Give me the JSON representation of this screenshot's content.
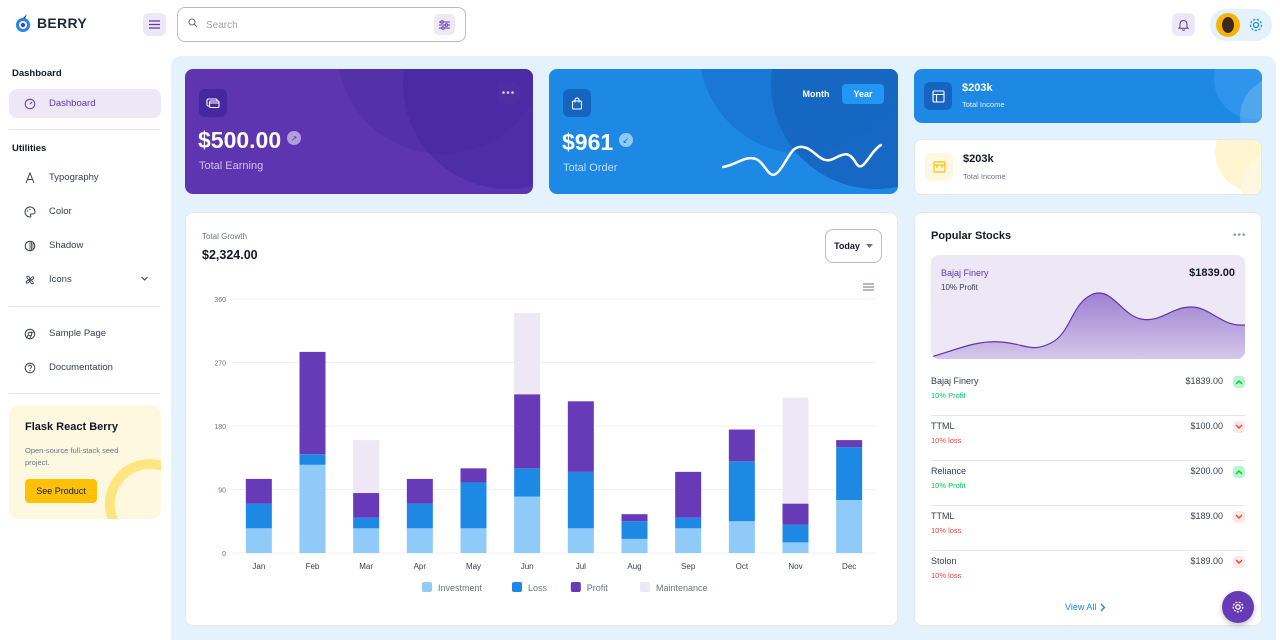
{
  "header": {
    "logo_text": "BERRY",
    "search_placeholder": "Search"
  },
  "sidebar": {
    "sections": [
      {
        "caption": "Dashboard"
      },
      {
        "caption": "Utilities"
      }
    ],
    "items": [
      {
        "label": "Dashboard",
        "icon": "dashboard-icon",
        "active": true
      },
      {
        "label": "Typography",
        "icon": "typography-icon"
      },
      {
        "label": "Color",
        "icon": "palette-icon"
      },
      {
        "label": "Shadow",
        "icon": "shadow-icon"
      },
      {
        "label": "Icons",
        "icon": "windmill-icon"
      },
      {
        "label": "Sample Page",
        "icon": "brand-chrome-icon"
      },
      {
        "label": "Documentation",
        "icon": "help-icon"
      }
    ],
    "promo": {
      "title": "Flask React Berry",
      "description": "Open-source full-stack seed project.",
      "button": "See Product"
    }
  },
  "cards": {
    "earning": {
      "value": "$500.00",
      "label": "Total Earning"
    },
    "order": {
      "value": "$961",
      "label": "Total Order",
      "toggle_month": "Month",
      "toggle_year": "Year",
      "selected": "Year"
    },
    "income_dark": {
      "value": "$203k",
      "label": "Total Income"
    },
    "income_light": {
      "value": "$203k",
      "label": "Total Income"
    }
  },
  "growth": {
    "label": "Total Growth",
    "value": "$2,324.00",
    "period": "Today"
  },
  "chart_data": {
    "type": "bar",
    "stacked": true,
    "categories": [
      "Jan",
      "Feb",
      "Mar",
      "Apr",
      "May",
      "Jun",
      "Jul",
      "Aug",
      "Sep",
      "Oct",
      "Nov",
      "Dec"
    ],
    "series": [
      {
        "name": "Investment",
        "color": "#90caf9",
        "values": [
          35,
          125,
          35,
          35,
          35,
          80,
          35,
          20,
          35,
          45,
          15,
          75
        ]
      },
      {
        "name": "Loss",
        "color": "#1e88e5",
        "values": [
          35,
          15,
          15,
          35,
          65,
          40,
          80,
          25,
          15,
          85,
          25,
          75
        ]
      },
      {
        "name": "Profit",
        "color": "#673ab7",
        "values": [
          35,
          145,
          35,
          35,
          20,
          105,
          100,
          10,
          65,
          45,
          30,
          10
        ]
      },
      {
        "name": "Maintenance",
        "color": "#ede7f6",
        "values": [
          0,
          0,
          75,
          0,
          0,
          115,
          0,
          0,
          0,
          0,
          150,
          0
        ]
      }
    ],
    "yticks": [
      0,
      90,
      180,
      270,
      360
    ],
    "ylim": [
      0,
      360
    ],
    "legend": "bottom",
    "grid": true
  },
  "stocks": {
    "title": "Popular Stocks",
    "featured": {
      "name": "Bajaj Finery",
      "profit": "10% Profit",
      "price": "$1839.00"
    },
    "rows": [
      {
        "name": "Bajaj Finery",
        "price": "$1839.00",
        "change": "10% Profit",
        "trend": "up"
      },
      {
        "name": "TTML",
        "price": "$100.00",
        "change": "10% loss",
        "trend": "down"
      },
      {
        "name": "Reliance",
        "price": "$200.00",
        "change": "10% Profit",
        "trend": "up"
      },
      {
        "name": "TTML",
        "price": "$189.00",
        "change": "10% loss",
        "trend": "down"
      },
      {
        "name": "Stolon",
        "price": "$189.00",
        "change": "10% loss",
        "trend": "down"
      }
    ],
    "view_all": "View All"
  },
  "colors": {
    "primary": "#5e35b1",
    "secondary": "#1e88e5",
    "success": "#00c853",
    "error": "#f44336",
    "warning": "#ffc107"
  }
}
